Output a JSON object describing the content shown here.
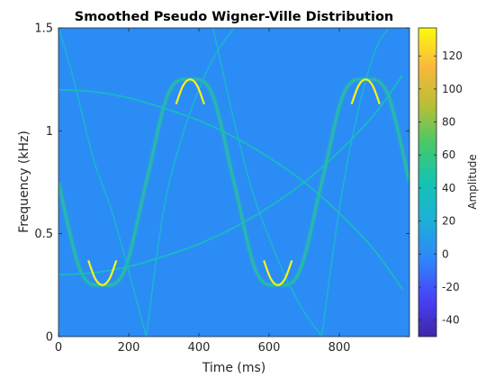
{
  "chart_data": {
    "type": "heatmap",
    "title": "Smoothed Pseudo Wigner-Ville Distribution",
    "xlabel": "Time (ms)",
    "ylabel": "Frequency (kHz)",
    "colorbar_label": "Amplitude",
    "xlim": [
      0,
      1000
    ],
    "ylim": [
      0,
      1.5
    ],
    "xticks": [
      0,
      200,
      400,
      600,
      800
    ],
    "xtick_labels": [
      "0",
      "200",
      "400",
      "600",
      "800"
    ],
    "yticks": [
      0,
      0.5,
      1,
      1.5
    ],
    "ytick_labels": [
      "0",
      "0.5",
      "1",
      "1.5"
    ],
    "clim": [
      -50,
      137
    ],
    "cbar_ticks": [
      -40,
      -20,
      0,
      20,
      40,
      60,
      80,
      100,
      120
    ],
    "cbar_tick_labels": [
      "-40",
      "-20",
      "0",
      "20",
      "40",
      "60",
      "80",
      "100",
      "120"
    ],
    "background_amplitude": 0,
    "colormap": [
      "#3e26a8",
      "#4743f8",
      "#2e86fa",
      "#1eafd8",
      "#14c3b3",
      "#47c86a",
      "#b8bf35",
      "#fab83c",
      "#f9fb0e"
    ],
    "components": [
      {
        "shape": "sinusoid",
        "time_ms": [
          0,
          62.5,
          125,
          187.5,
          250,
          312.5,
          375,
          437.5,
          500,
          562.5,
          625,
          687.5,
          750,
          812.5,
          875,
          937.5,
          1000
        ],
        "frequency_khz": [
          0.75,
          0.32,
          0.25,
          0.32,
          0.75,
          1.18,
          1.25,
          1.18,
          0.75,
          0.32,
          0.25,
          0.32,
          0.75,
          1.18,
          1.25,
          1.18,
          0.75
        ],
        "peak_amplitude": 135
      },
      {
        "shape": "rising-curve",
        "time_ms": [
          0,
          100,
          200,
          300,
          400,
          500,
          600,
          700,
          800,
          900,
          980
        ],
        "frequency_khz": [
          0.3,
          0.31,
          0.34,
          0.39,
          0.45,
          0.53,
          0.63,
          0.75,
          0.9,
          1.08,
          1.27
        ],
        "peak_amplitude": 40
      },
      {
        "shape": "falling-curve",
        "time_ms": [
          0,
          100,
          200,
          300,
          400,
          500,
          600,
          700,
          800,
          900,
          980
        ],
        "frequency_khz": [
          1.2,
          1.19,
          1.16,
          1.11,
          1.05,
          0.97,
          0.87,
          0.75,
          0.6,
          0.42,
          0.23
        ],
        "peak_amplitude": 40
      },
      {
        "shape": "cross-term-line",
        "time_ms": [
          0,
          40,
          100,
          150,
          200,
          250
        ],
        "frequency_khz": [
          1.5,
          1.27,
          0.86,
          0.62,
          0.32,
          0
        ],
        "peak_amplitude": 25
      },
      {
        "shape": "cross-term-line",
        "time_ms": [
          250,
          300,
          350,
          400,
          450,
          500
        ],
        "frequency_khz": [
          0,
          0.62,
          0.96,
          1.2,
          1.38,
          1.5
        ],
        "peak_amplitude": 25
      },
      {
        "shape": "cross-term-line",
        "time_ms": [
          440,
          500,
          550,
          600,
          650,
          700,
          750
        ],
        "frequency_khz": [
          1.5,
          1.05,
          0.72,
          0.48,
          0.28,
          0.12,
          0
        ],
        "peak_amplitude": 25
      },
      {
        "shape": "cross-term-line",
        "time_ms": [
          750,
          800,
          850,
          900,
          940
        ],
        "frequency_khz": [
          0,
          0.62,
          1.07,
          1.38,
          1.5
        ],
        "peak_amplitude": 25
      }
    ]
  }
}
